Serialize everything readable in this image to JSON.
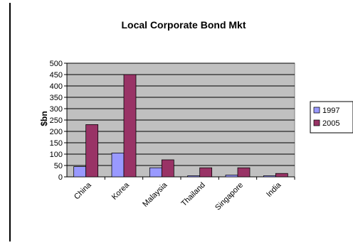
{
  "chart_data": {
    "type": "bar",
    "title": "Local Corporate Bond Mkt",
    "xlabel": "",
    "ylabel": "$bn",
    "categories": [
      "China",
      "Korea",
      "Malaysia",
      "Thailand",
      "Singapore",
      "India"
    ],
    "series": [
      {
        "name": "1997",
        "color": "#9999ff",
        "values": [
          45,
          105,
          40,
          5,
          8,
          5
        ]
      },
      {
        "name": "2005",
        "color": "#993366",
        "values": [
          230,
          450,
          75,
          40,
          40,
          15
        ]
      }
    ],
    "ylim": [
      0,
      500
    ],
    "yticks": [
      0,
      50,
      100,
      150,
      200,
      250,
      300,
      350,
      400,
      450,
      500
    ],
    "grid": true,
    "legend": "right",
    "plot_background": "#c0c0c0"
  }
}
